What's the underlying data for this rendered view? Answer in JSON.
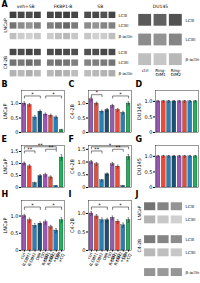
{
  "chart_data": [
    {
      "type": "blot",
      "title": "A",
      "groups": [
        "veh+SB",
        "FKBP1-B",
        "SB"
      ],
      "sections": [
        {
          "name": "LNCaP",
          "bands": [
            "LC3I",
            "LC3II",
            "β-actin"
          ],
          "cells": [
            [
              [
                0.25,
                0.2,
                0.18,
                0.22
              ],
              [
                0.55,
                0.45,
                0.42,
                0.5
              ],
              [
                0.75,
                0.72,
                0.7,
                0.74
              ]
            ],
            [
              [
                0.2,
                0.25,
                0.28,
                0.22
              ],
              [
                0.5,
                0.55,
                0.6,
                0.52
              ],
              [
                0.72,
                0.74,
                0.76,
                0.73
              ]
            ],
            [
              [
                0.22,
                0.18,
                0.2,
                0.25
              ],
              [
                0.45,
                0.42,
                0.48,
                0.5
              ],
              [
                0.7,
                0.72,
                0.68,
                0.73
              ]
            ]
          ]
        },
        {
          "name": "C4-2B",
          "bands": [
            "LC3I",
            "LC3II",
            "β-actin"
          ],
          "cells": [
            [
              [
                0.3,
                0.28,
                0.32,
                0.28
              ],
              [
                0.55,
                0.52,
                0.58,
                0.54
              ],
              [
                0.72,
                0.7,
                0.74,
                0.71
              ]
            ],
            [
              [
                0.28,
                0.32,
                0.3,
                0.26
              ],
              [
                0.52,
                0.56,
                0.54,
                0.5
              ],
              [
                0.7,
                0.72,
                0.71,
                0.69
              ]
            ],
            [
              [
                0.26,
                0.28,
                0.3,
                0.32
              ],
              [
                0.48,
                0.5,
                0.52,
                0.54
              ],
              [
                0.68,
                0.7,
                0.72,
                0.71
              ]
            ]
          ]
        }
      ]
    },
    {
      "type": "blot",
      "groups": [
        "DU145"
      ],
      "lane_labels": [
        "ctrl",
        "Ring-\nDIM1",
        "Ring-\nDIM2"
      ],
      "sections": [
        {
          "bands": [
            "LC3I",
            "LC3II",
            "β-actin"
          ],
          "cells": [
            [
              [
                0.25,
                0.22,
                0.28
              ],
              [
                0.45,
                0.42,
                0.48
              ],
              [
                0.65,
                0.62,
                0.68
              ]
            ]
          ]
        }
      ]
    },
    {
      "type": "bar",
      "title": "B",
      "y_label": "LNCaP",
      "tick_labels": "y",
      "categories": [
        null,
        null,
        null,
        null,
        null,
        null,
        null,
        null
      ],
      "values": [
        1.0,
        0.95,
        0.52,
        0.72,
        0.62,
        0.58,
        0.52,
        0.08
      ],
      "errors": [
        0.06,
        0.05,
        0.06,
        0.05,
        0.05,
        0.05,
        0.05,
        0.03
      ],
      "colors": [
        "#9b59b6",
        "#e74c3c",
        "#2980b9",
        "#1a5276",
        "#9b59b6",
        "#e74c3c",
        "#2980b9",
        "#27ae60"
      ],
      "ylim": [
        0,
        1.45
      ],
      "yticks": [
        0,
        {
          "value": 0.5,
          "label": "0.5"
        },
        {
          "value": 1,
          "label": "1.0"
        }
      ],
      "grid": false,
      "annotations": [
        {
          "from": 0,
          "to": 3,
          "text": "*",
          "y": 1.189
        },
        {
          "from": 4,
          "to": 7,
          "text": "*",
          "y": 1.189
        }
      ]
    },
    {
      "type": "bar",
      "title": "C",
      "y_label": "C4-2B",
      "tick_labels": "y",
      "categories": [
        null,
        null,
        null,
        null,
        null,
        null,
        null,
        null
      ],
      "values": [
        1.15,
        1.0,
        0.72,
        0.78,
        0.92,
        0.78,
        0.68,
        1.0
      ],
      "errors": [
        0.06,
        0.05,
        0.05,
        0.05,
        0.05,
        0.05,
        0.05,
        0.06
      ],
      "colors": [
        "#9b59b6",
        "#e74c3c",
        "#2980b9",
        "#1a5276",
        "#9b59b6",
        "#e74c3c",
        "#2980b9",
        "#27ae60"
      ],
      "ylim": [
        0,
        1.45
      ],
      "yticks": [
        0,
        {
          "value": 0.5,
          "label": "0.5"
        },
        {
          "value": 1,
          "label": "1.0"
        }
      ],
      "grid": false,
      "annotations": [
        {
          "from": 0,
          "to": 2,
          "text": "*",
          "y": 1.2325
        },
        {
          "from": 4,
          "to": 7,
          "text": "*",
          "y": 1.189
        }
      ]
    },
    {
      "type": "bar",
      "title": "D",
      "y_label": "DU145",
      "tick_labels": "y",
      "categories": [
        null,
        null,
        null,
        null,
        null,
        null,
        null,
        null
      ],
      "values": [
        1.0,
        1.0,
        1.0,
        1.0,
        1.0,
        1.0,
        1.0,
        1.0
      ],
      "errors": [
        0.03,
        0.03,
        0.03,
        0.03,
        0.03,
        0.03,
        0.03,
        0.03
      ],
      "colors": [
        "#9b59b6",
        "#e74c3c",
        "#2980b9",
        "#1a5276",
        "#9b59b6",
        "#e74c3c",
        "#2980b9",
        "#27ae60"
      ],
      "ylim": [
        0,
        1.35
      ],
      "yticks": [
        0,
        {
          "value": 0.5,
          "label": "0.5"
        },
        {
          "value": 1,
          "label": "1.0"
        }
      ],
      "grid": false
    },
    {
      "type": "bar",
      "title": "E",
      "y_label": "LNCaP",
      "tick_labels": "y",
      "categories": [
        null,
        null,
        null,
        null,
        null,
        null,
        null,
        null
      ],
      "values": [
        1.0,
        0.88,
        0.18,
        0.48,
        0.52,
        0.42,
        0.06,
        1.25
      ],
      "errors": [
        0.06,
        0.07,
        0.04,
        0.06,
        0.07,
        0.06,
        0.02,
        0.12
      ],
      "colors": [
        "#9b59b6",
        "#e74c3c",
        "#2980b9",
        "#1a5276",
        "#9b59b6",
        "#e74c3c",
        "#2980b9",
        "#27ae60"
      ],
      "ylim": [
        0,
        1.75
      ],
      "yticks": [
        0,
        {
          "value": 0.5,
          "label": "0.5"
        },
        {
          "value": 1,
          "label": "1.0"
        },
        {
          "value": 1.5,
          "label": "1.5"
        }
      ],
      "grid": false,
      "annotations": [
        {
          "from": 0,
          "to": 2,
          "text": "**",
          "y": 1.435
        },
        {
          "from": 0,
          "to": 6,
          "text": "**",
          "y": 1.61
        },
        {
          "from": 4,
          "to": 6,
          "text": "**",
          "y": 1.505
        }
      ]
    },
    {
      "type": "bar",
      "title": "F",
      "y_label": "C4-2B",
      "tick_labels": "y",
      "categories": [
        null,
        null,
        null,
        null,
        null,
        null,
        null,
        null
      ],
      "values": [
        1.0,
        0.92,
        0.28,
        0.52,
        0.92,
        0.82,
        0.06,
        1.2
      ],
      "errors": [
        0.06,
        0.06,
        0.04,
        0.05,
        0.06,
        0.06,
        0.02,
        0.1
      ],
      "colors": [
        "#9b59b6",
        "#e74c3c",
        "#2980b9",
        "#1a5276",
        "#9b59b6",
        "#e74c3c",
        "#2980b9",
        "#27ae60"
      ],
      "ylim": [
        0,
        1.65
      ],
      "yticks": [
        0,
        {
          "value": 0.5,
          "label": "0.5"
        },
        {
          "value": 1,
          "label": "1.0"
        },
        {
          "value": 1.5,
          "label": "1.5"
        }
      ],
      "grid": false,
      "annotations": [
        {
          "from": 0,
          "to": 2,
          "text": "**",
          "y": 1.353
        },
        {
          "from": 4,
          "to": 6,
          "text": "**",
          "y": 1.419
        },
        {
          "from": 0,
          "to": 7,
          "text": "*",
          "y": 1.518
        }
      ]
    },
    {
      "type": "bar",
      "title": "G",
      "y_label": "DU145",
      "tick_labels": "y",
      "categories": [
        null,
        null,
        null,
        null,
        null,
        null,
        null,
        null
      ],
      "values": [
        1.0,
        1.0,
        1.0,
        1.0,
        1.0,
        1.0,
        1.0,
        1.0
      ],
      "errors": [
        0.03,
        0.03,
        0.03,
        0.03,
        0.03,
        0.03,
        0.03,
        0.03
      ],
      "colors": [
        "#9b59b6",
        "#e74c3c",
        "#2980b9",
        "#1a5276",
        "#9b59b6",
        "#e74c3c",
        "#2980b9",
        "#27ae60"
      ],
      "ylim": [
        0,
        1.35
      ],
      "yticks": [
        0,
        {
          "value": 0.5,
          "label": "0.5"
        },
        {
          "value": 1,
          "label": "1.0"
        }
      ],
      "grid": false
    },
    {
      "type": "bar",
      "title": "H",
      "y_label": "LNCaP",
      "categories": [
        "ctrl",
        "R-DIM1",
        "R-DIM2",
        "DIM",
        "ctrl\n+CQ",
        "R-DIM1\n+CQ",
        "R-DIM2\n+CQ",
        "DIM\n+CQ"
      ],
      "values": [
        1.0,
        0.88,
        0.72,
        0.78,
        0.82,
        0.68,
        0.58,
        0.88
      ],
      "errors": [
        0.05,
        0.06,
        0.06,
        0.05,
        0.06,
        0.05,
        0.06,
        0.07
      ],
      "colors": [
        "#9b59b6",
        "#e74c3c",
        "#2980b9",
        "#1a5276",
        "#9b59b6",
        "#e74c3c",
        "#2980b9",
        "#27ae60"
      ],
      "ylim": [
        0,
        1.45
      ],
      "yticks": [
        0,
        {
          "value": 0.5,
          "label": "0.5"
        },
        {
          "value": 1,
          "label": "1.0"
        }
      ],
      "grid": false,
      "annotations": [
        {
          "from": 0,
          "to": 3,
          "text": "*",
          "y": 1.189
        },
        {
          "from": 4,
          "to": 7,
          "text": "*",
          "y": 1.189
        }
      ]
    },
    {
      "type": "bar",
      "title": "I",
      "y_label": "C4-2B",
      "categories": [
        "ctrl",
        "R-DIM1",
        "R-DIM2",
        "DIM",
        "ctrl\n+CQ",
        "R-DIM1\n+CQ",
        "R-DIM2\n+CQ",
        "DIM\n+CQ"
      ],
      "values": [
        1.0,
        0.92,
        0.82,
        0.82,
        0.88,
        0.78,
        0.68,
        0.82
      ],
      "errors": [
        0.05,
        0.05,
        0.06,
        0.05,
        0.05,
        0.05,
        0.06,
        0.06
      ],
      "colors": [
        "#9b59b6",
        "#e74c3c",
        "#2980b9",
        "#1a5276",
        "#9b59b6",
        "#e74c3c",
        "#2980b9",
        "#27ae60"
      ],
      "ylim": [
        0,
        1.35
      ],
      "yticks": [
        0,
        {
          "value": 0.5,
          "label": "0.5"
        },
        {
          "value": 1,
          "label": "1.0"
        }
      ],
      "grid": false,
      "annotations": [
        {
          "from": 0,
          "to": 3,
          "text": "*",
          "y": 1.107
        },
        {
          "from": 4,
          "to": 7,
          "text": "*",
          "y": 1.107
        }
      ]
    },
    {
      "type": "blot",
      "title": "J",
      "sections": [
        {
          "name": "LNCaP",
          "bands": [
            "LC3I",
            "LC3II"
          ],
          "cells": [
            [
              [
                0.3,
                0.22,
                0.18
              ],
              [
                0.55,
                0.48,
                0.42
              ]
            ]
          ]
        },
        {
          "name": "C4-2B",
          "bands": [
            "LC3I",
            "LC3II"
          ],
          "cells": [
            [
              [
                0.28,
                0.25,
                0.22
              ],
              [
                0.52,
                0.48,
                0.45
              ]
            ]
          ]
        },
        {
          "bands": [
            "β-actin"
          ],
          "cells": [
            [
              [
                0.42,
                0.4,
                0.41
              ]
            ]
          ]
        }
      ]
    }
  ]
}
